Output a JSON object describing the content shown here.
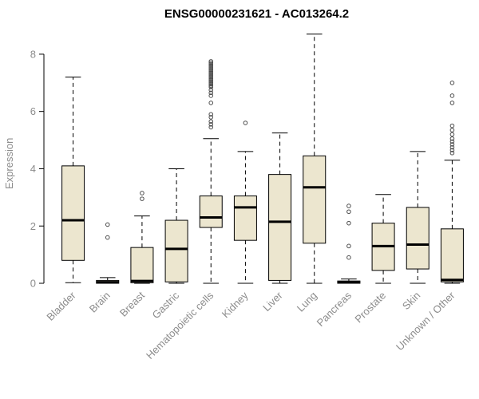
{
  "chart_data": {
    "type": "boxplot",
    "title": "ENSG00000231621 - AC013264.2",
    "ylabel": "Expression",
    "ylim": [
      0,
      8.75
    ],
    "yticks": [
      0,
      2,
      4,
      6,
      8
    ],
    "grid": false,
    "legend": false,
    "categories": [
      "Bladder",
      "Brain",
      "Breast",
      "Gastric",
      "Hematopoietic cells",
      "Kidney",
      "Liver",
      "Lung",
      "Pancreas",
      "Prostate",
      "Skin",
      "Unknown / Other"
    ],
    "series": [
      {
        "category": "Bladder",
        "whislo": 0.02,
        "q1": 0.8,
        "med": 2.2,
        "q3": 4.1,
        "whishi": 7.2,
        "outliers": []
      },
      {
        "category": "Brain",
        "whislo": 0,
        "q1": 0,
        "med": 0.04,
        "q3": 0.1,
        "whishi": 0.2,
        "outliers": [
          1.6,
          2.05
        ]
      },
      {
        "category": "Breast",
        "whislo": 0,
        "q1": 0.02,
        "med": 0.08,
        "q3": 1.25,
        "whishi": 2.35,
        "outliers": [
          2.95,
          3.15
        ]
      },
      {
        "category": "Gastric",
        "whislo": 0,
        "q1": 0.05,
        "med": 1.2,
        "q3": 2.2,
        "whishi": 4.0,
        "outliers": []
      },
      {
        "category": "Hematopoietic cells",
        "whislo": 0,
        "q1": 1.95,
        "med": 2.3,
        "q3": 3.05,
        "whishi": 5.05,
        "outliers": [
          5.45,
          5.55,
          5.65,
          5.8,
          5.9,
          6.3,
          6.55,
          6.65,
          6.75,
          6.85,
          6.9,
          6.95,
          7.0,
          7.05,
          7.1,
          7.15,
          7.2,
          7.25,
          7.3,
          7.35,
          7.4,
          7.45,
          7.5,
          7.55,
          7.6,
          7.65,
          7.7,
          7.75
        ]
      },
      {
        "category": "Kidney",
        "whislo": 0,
        "q1": 1.5,
        "med": 2.65,
        "q3": 3.05,
        "whishi": 4.6,
        "outliers": [
          5.6
        ]
      },
      {
        "category": "Liver",
        "whislo": 0,
        "q1": 0.1,
        "med": 2.15,
        "q3": 3.8,
        "whishi": 5.25,
        "outliers": []
      },
      {
        "category": "Lung",
        "whislo": 0,
        "q1": 1.4,
        "med": 3.35,
        "q3": 4.45,
        "whishi": 8.7,
        "outliers": []
      },
      {
        "category": "Pancreas",
        "whislo": 0,
        "q1": 0,
        "med": 0.03,
        "q3": 0.08,
        "whishi": 0.15,
        "outliers": [
          0.9,
          1.3,
          2.1,
          2.5,
          2.7
        ]
      },
      {
        "category": "Prostate",
        "whislo": 0,
        "q1": 0.45,
        "med": 1.3,
        "q3": 2.1,
        "whishi": 3.1,
        "outliers": []
      },
      {
        "category": "Skin",
        "whislo": 0,
        "q1": 0.5,
        "med": 1.35,
        "q3": 2.65,
        "whishi": 4.6,
        "outliers": []
      },
      {
        "category": "Unknown / Other",
        "whislo": 0,
        "q1": 0.05,
        "med": 0.12,
        "q3": 1.9,
        "whishi": 4.3,
        "outliers": [
          4.55,
          4.65,
          4.75,
          4.85,
          4.95,
          5.05,
          5.2,
          5.35,
          5.5,
          6.3,
          6.55,
          7.0
        ]
      }
    ],
    "colors": {
      "box_fill": "#ECE6CF",
      "box_stroke": "#000000",
      "median": "#000000",
      "whisker": "#000000",
      "outlier": "#4d4d4d",
      "axis": "#000000",
      "tick_text": "#8c8c8c",
      "title": "#000000"
    }
  }
}
